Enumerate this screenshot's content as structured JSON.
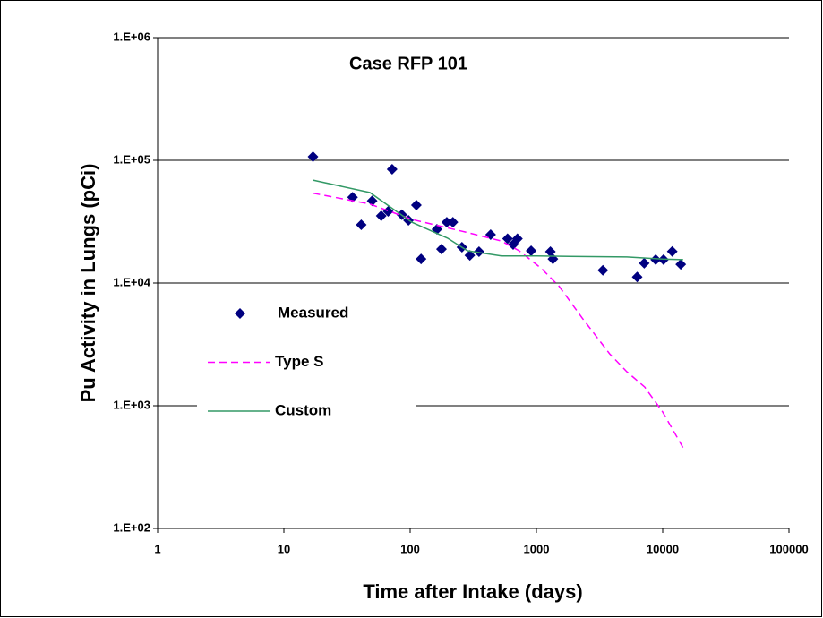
{
  "chart_data": {
    "type": "scatter",
    "title": "Case RFP 101",
    "x_label": "Time after Intake (days)",
    "y_label": "Pu Activity in Lungs (pCi)",
    "xscale": "log",
    "yscale": "log",
    "xlim": [
      1,
      100000
    ],
    "ylim": [
      100,
      1000000
    ],
    "xticks": [
      1,
      10,
      100,
      1000,
      10000,
      100000
    ],
    "yticks": [
      {
        "value": 100,
        "label": "1.E+02"
      },
      {
        "value": 1000,
        "label": "1.E+03"
      },
      {
        "value": 10000,
        "label": "1.E+04"
      },
      {
        "value": 100000,
        "label": "1.E+05"
      },
      {
        "value": 1000000,
        "label": "1.E+06"
      }
    ],
    "grid": true,
    "legend": "left",
    "series": [
      {
        "name": "Measured",
        "style": "markers",
        "color": "#000080",
        "x": [
          17,
          72,
          35,
          41,
          50,
          59,
          67,
          86,
          97,
          112,
          122,
          163,
          177,
          195,
          218,
          257,
          297,
          351,
          434,
          591,
          654,
          707,
          908,
          1290,
          1350,
          3360,
          6280,
          7140,
          8800,
          10150,
          11900,
          13900
        ],
        "values": [
          107000,
          84500,
          50000,
          29800,
          46700,
          35300,
          38400,
          36000,
          32400,
          43200,
          15700,
          27400,
          18900,
          31300,
          31300,
          19600,
          16800,
          18000,
          24800,
          23000,
          20600,
          23000,
          18300,
          18000,
          15700,
          12700,
          11200,
          14500,
          15500,
          15500,
          18100,
          14200
        ]
      },
      {
        "name": "Type S",
        "style": "dashed",
        "color": "#ff00ff",
        "x": [
          17,
          48,
          103,
          275,
          528,
          730,
          1100,
          1520,
          2300,
          3800,
          5200,
          7200,
          10000,
          14500
        ],
        "values": [
          54000,
          44000,
          33000,
          26000,
          22000,
          18300,
          13100,
          9350,
          5200,
          2650,
          1890,
          1420,
          889,
          454
        ]
      },
      {
        "name": "Custom",
        "style": "solid",
        "color": "#339966",
        "x": [
          17,
          48,
          103,
          198,
          285,
          528,
          1000,
          5200,
          10000,
          14500
        ],
        "values": [
          69000,
          54600,
          31300,
          23200,
          18300,
          16600,
          16600,
          16300,
          15700,
          15500
        ]
      }
    ]
  }
}
